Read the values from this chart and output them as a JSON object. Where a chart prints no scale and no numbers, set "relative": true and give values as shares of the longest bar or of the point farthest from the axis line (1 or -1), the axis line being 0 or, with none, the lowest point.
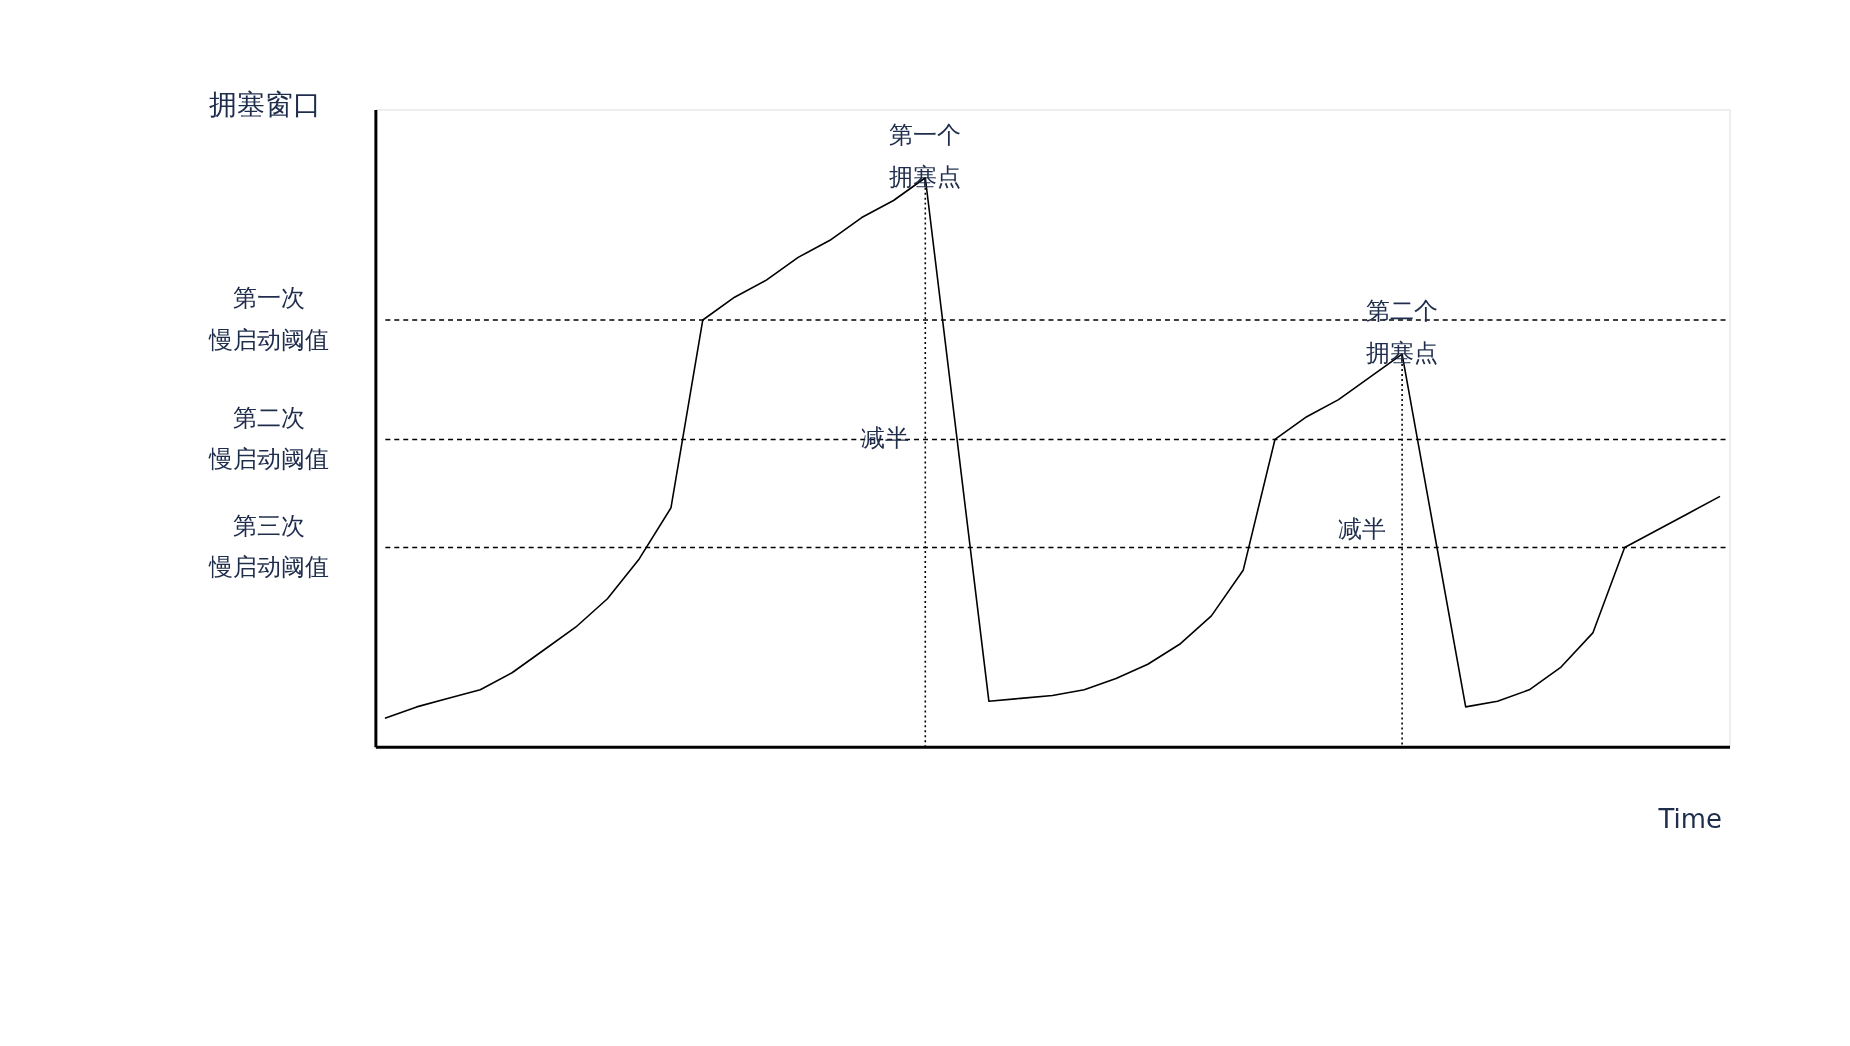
{
  "chart_data": {
    "type": "line",
    "relative": true,
    "ylabel": "拥塞窗口",
    "xlabel": "Time",
    "tick_labels": false,
    "grid": false,
    "line_style": "solid",
    "marker": "none",
    "categories": [
      null,
      null,
      null,
      null,
      null,
      null,
      null,
      null,
      null,
      null,
      null,
      null,
      null,
      null,
      null,
      null,
      null,
      null,
      null,
      null,
      null,
      null,
      null,
      null,
      null,
      null,
      null,
      null,
      null,
      null,
      null,
      null,
      null,
      null,
      null,
      null,
      null,
      null,
      null,
      null,
      null,
      null,
      null
    ],
    "series": [
      {
        "color": "#000000",
        "values": [
          0.05,
          0.07,
          0.085,
          0.1,
          0.13,
          0.17,
          0.21,
          0.26,
          0.33,
          0.42,
          0.75,
          0.79,
          0.82,
          0.86,
          0.89,
          0.93,
          0.96,
          1.0,
          0.54,
          0.08,
          0.085,
          0.09,
          0.1,
          0.12,
          0.145,
          0.18,
          0.23,
          0.31,
          0.54,
          0.58,
          0.61,
          0.65,
          0.69,
          0.38,
          0.07,
          0.08,
          0.1,
          0.14,
          0.2,
          0.35,
          0.38,
          0.41,
          0.44
        ]
      }
    ],
    "ref_lines": [
      {
        "axis": "y",
        "value": 0.75,
        "label": "第一次慢启动阈值",
        "line_style": "dashed"
      },
      {
        "axis": "y",
        "value": 0.54,
        "label": "第二次慢启动阈值",
        "line_style": "dashed"
      },
      {
        "axis": "y",
        "value": 0.35,
        "label": "第三次慢启动阈值",
        "line_style": "dashed"
      }
    ],
    "annotations": [
      "第一个拥塞点",
      "减半",
      "第二个拥塞点",
      "减半"
    ]
  }
}
